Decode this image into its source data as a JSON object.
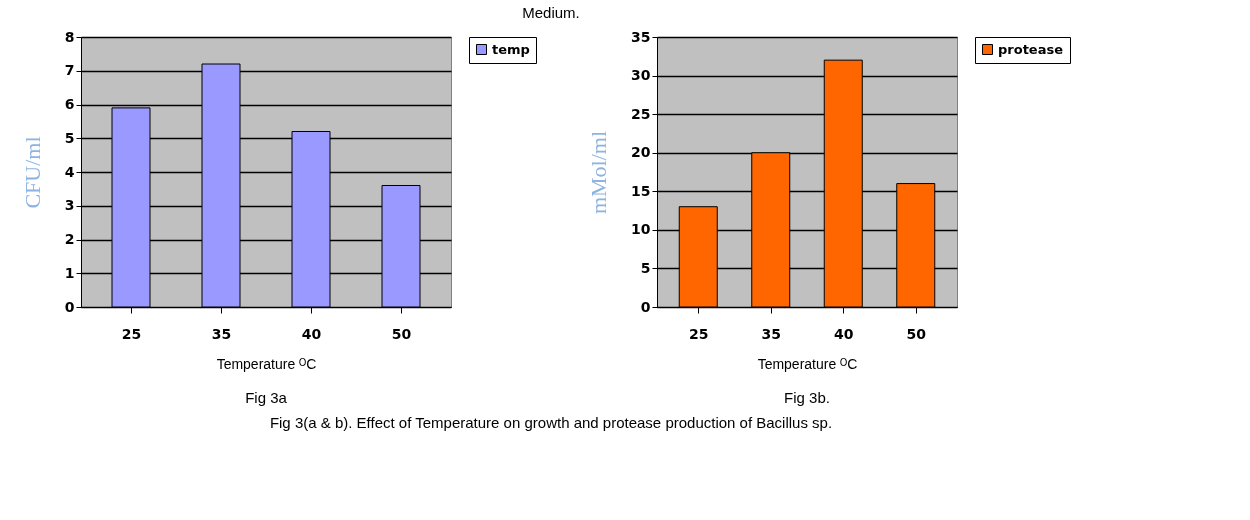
{
  "chart_data": [
    {
      "type": "bar",
      "categories": [
        "25",
        "35",
        "40",
        "50"
      ],
      "xlabel": "Temperature ᴼC",
      "ylabel": "CFU/ml",
      "series": [
        {
          "name": "temp",
          "color": "#9999ff",
          "values": [
            5.9,
            7.2,
            5.2,
            3.6
          ]
        }
      ],
      "ylim": [
        0,
        8
      ],
      "yticks": [
        0,
        1,
        2,
        3,
        4,
        5,
        6,
        7,
        8
      ],
      "grid": "y",
      "legend": "right",
      "annotations": [
        "Medium.",
        "Fig 3a"
      ]
    },
    {
      "type": "bar",
      "categories": [
        "25",
        "35",
        "40",
        "50"
      ],
      "xlabel": "Temperature ᴼC",
      "ylabel": "mMol/ml",
      "series": [
        {
          "name": "protease",
          "color": "#ff6600",
          "values": [
            13,
            20,
            32,
            16
          ]
        }
      ],
      "ylim": [
        0,
        35
      ],
      "yticks": [
        0,
        5,
        10,
        15,
        20,
        25,
        30,
        35
      ],
      "grid": "y",
      "legend": "right",
      "annotations": [
        "Fig 3b.",
        "Fig 3(a & b). Effect of Temperature on growth and protease production of Bacillus sp."
      ]
    }
  ]
}
